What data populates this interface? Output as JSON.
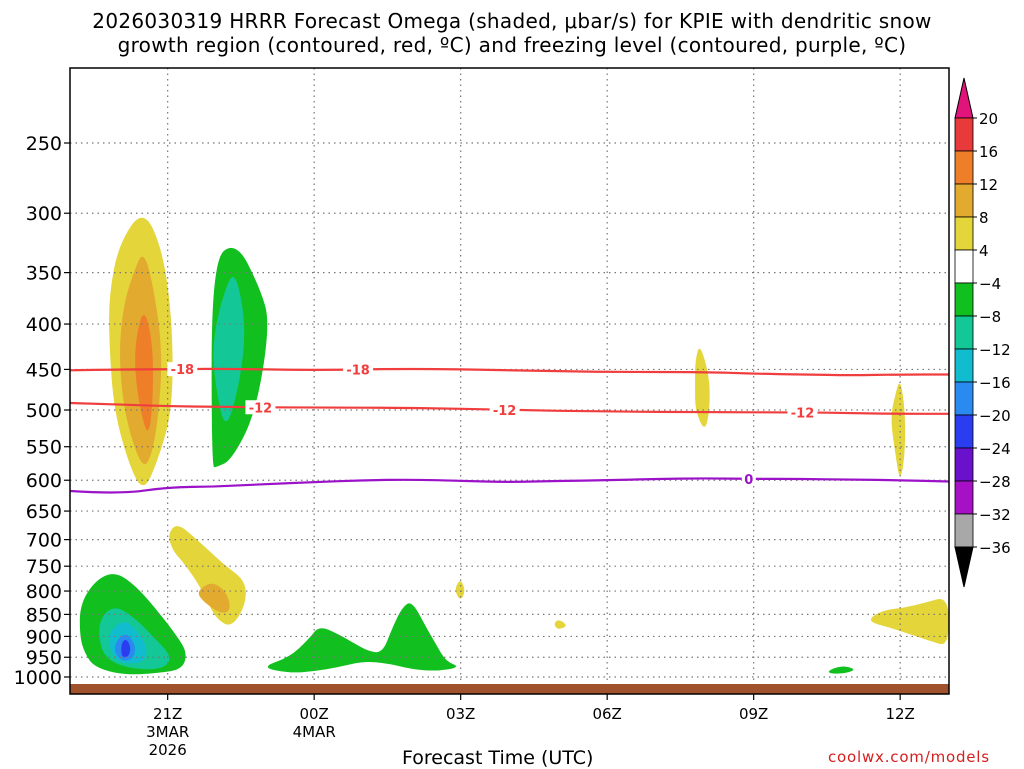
{
  "chart_data": {
    "type": "heatmap",
    "title_line1": "2026030319 HRRR Forecast Omega (shaded, μbar/s) for KPIE with dendritic snow",
    "title_line2": "growth region (contoured, red, ºC) and freezing level (contoured, purple, ºC)",
    "xlabel": "Forecast Time (UTC)",
    "ylabel": "",
    "credit": "coolwx.com/models",
    "xlim": [
      19,
      37
    ],
    "ylim": [
      1000,
      200
    ],
    "x_ticks": [
      {
        "value": 21,
        "label": "21Z",
        "sub1": "3MAR",
        "sub2": "2026"
      },
      {
        "value": 24,
        "label": "00Z",
        "sub1": "4MAR",
        "sub2": ""
      },
      {
        "value": 27,
        "label": "03Z",
        "sub1": "",
        "sub2": ""
      },
      {
        "value": 30,
        "label": "06Z",
        "sub1": "",
        "sub2": ""
      },
      {
        "value": 33,
        "label": "09Z",
        "sub1": "",
        "sub2": ""
      },
      {
        "value": 36,
        "label": "12Z",
        "sub1": "",
        "sub2": ""
      }
    ],
    "y_ticks": [
      250,
      300,
      350,
      400,
      450,
      500,
      550,
      600,
      650,
      700,
      750,
      800,
      850,
      900,
      950,
      1000
    ],
    "colorbar": {
      "levels": [
        "20",
        "16",
        "12",
        "8",
        "4",
        "−4",
        "−8",
        "−12",
        "−16",
        "−20",
        "−24",
        "−28",
        "−32",
        "−36"
      ],
      "colors": [
        "#e0147a",
        "#e83a3a",
        "#ee7f28",
        "#e2aa2e",
        "#e3d53a",
        "#ffffff",
        "#11c01e",
        "#14c796",
        "#11bccf",
        "#2a8af0",
        "#2a3df0",
        "#6a11cb",
        "#a611c6",
        "#a8a8a8",
        "#000000"
      ]
    },
    "series": [
      {
        "name": "dendritic growth -18C",
        "kind": "isotherm",
        "color": "#f03e3e",
        "label": "-18",
        "points": [
          [
            19,
            451
          ],
          [
            20,
            450
          ],
          [
            21,
            450
          ],
          [
            22,
            449
          ],
          [
            24,
            451
          ],
          [
            26,
            449
          ],
          [
            28,
            451
          ],
          [
            30,
            453
          ],
          [
            32,
            453
          ],
          [
            33,
            455
          ],
          [
            34,
            456
          ],
          [
            35,
            457
          ],
          [
            36,
            456
          ],
          [
            37,
            456
          ]
        ],
        "label_x": [
          21.3,
          24.9
        ]
      },
      {
        "name": "dendritic growth -12C",
        "kind": "isotherm",
        "color": "#f03e3e",
        "label": "-12",
        "points": [
          [
            19,
            491
          ],
          [
            20,
            493
          ],
          [
            21,
            495
          ],
          [
            22,
            496
          ],
          [
            24,
            497
          ],
          [
            26,
            497
          ],
          [
            28,
            500
          ],
          [
            30,
            502
          ],
          [
            32,
            503
          ],
          [
            34,
            503
          ],
          [
            35,
            504
          ],
          [
            36,
            505
          ],
          [
            37,
            505
          ]
        ],
        "label_x": [
          22.9,
          27.9,
          34.0
        ]
      },
      {
        "name": "freezing level 0C",
        "kind": "isotherm",
        "color": "#9b12c8",
        "label": "0",
        "points": [
          [
            19,
            617
          ],
          [
            20,
            622
          ],
          [
            21,
            611
          ],
          [
            22,
            610
          ],
          [
            23,
            606
          ],
          [
            24,
            603
          ],
          [
            25,
            600
          ],
          [
            26,
            599
          ],
          [
            27,
            601
          ],
          [
            28,
            603
          ],
          [
            29,
            601
          ],
          [
            30,
            600
          ],
          [
            31,
            598
          ],
          [
            32,
            597
          ],
          [
            33,
            598
          ],
          [
            34,
            598
          ],
          [
            35,
            599
          ],
          [
            36,
            600
          ],
          [
            37,
            602
          ]
        ],
        "label_x": [
          32.9
        ]
      }
    ],
    "shaded_regions": [
      {
        "value": "4 to 8",
        "color": "#e3d53a",
        "points": [
          [
            20.0,
            325
          ],
          [
            20.5,
            296
          ],
          [
            20.9,
            330
          ],
          [
            21.1,
            400
          ],
          [
            21.1,
            500
          ],
          [
            20.8,
            570
          ],
          [
            20.5,
            620
          ],
          [
            20.2,
            575
          ],
          [
            19.9,
            500
          ],
          [
            19.8,
            420
          ],
          [
            19.8,
            370
          ]
        ]
      },
      {
        "value": "8 to 12",
        "color": "#e2aa2e",
        "points": [
          [
            20.3,
            350
          ],
          [
            20.5,
            330
          ],
          [
            20.7,
            360
          ],
          [
            20.9,
            430
          ],
          [
            20.8,
            520
          ],
          [
            20.6,
            580
          ],
          [
            20.4,
            570
          ],
          [
            20.1,
            500
          ],
          [
            20.0,
            430
          ],
          [
            20.1,
            380
          ]
        ]
      },
      {
        "value": "12 to 16",
        "color": "#ee7f28",
        "points": [
          [
            20.5,
            380
          ],
          [
            20.7,
            420
          ],
          [
            20.7,
            490
          ],
          [
            20.6,
            540
          ],
          [
            20.4,
            490
          ],
          [
            20.3,
            430
          ]
        ]
      },
      {
        "value": "-8 to -4",
        "color": "#11c01e",
        "points": [
          [
            22.4,
            322
          ],
          [
            22.9,
            365
          ],
          [
            23.1,
            400
          ],
          [
            22.8,
            505
          ],
          [
            22.3,
            570
          ],
          [
            22.0,
            580
          ],
          [
            21.9,
            580
          ],
          [
            21.9,
            340
          ]
        ]
      },
      {
        "value": "-12 to -8",
        "color": "#14c796",
        "points": [
          [
            22.2,
            360
          ],
          [
            22.4,
            350
          ],
          [
            22.6,
            400
          ],
          [
            22.5,
            460
          ],
          [
            22.2,
            530
          ],
          [
            22.0,
            480
          ],
          [
            21.9,
            420
          ]
        ]
      },
      {
        "value": "4 to 8",
        "color": "#e3d53a",
        "points": [
          [
            21.0,
            690
          ],
          [
            21.2,
            670
          ],
          [
            21.6,
            700
          ],
          [
            21.9,
            725
          ],
          [
            22.2,
            750
          ],
          [
            22.6,
            780
          ],
          [
            22.6,
            830
          ],
          [
            22.3,
            880
          ],
          [
            22.0,
            860
          ],
          [
            21.8,
            820
          ],
          [
            21.6,
            780
          ],
          [
            21.3,
            740
          ],
          [
            21.1,
            720
          ]
        ]
      },
      {
        "value": "8 to 12",
        "color": "#e2aa2e",
        "points": [
          [
            21.6,
            800
          ],
          [
            21.9,
            780
          ],
          [
            22.2,
            800
          ],
          [
            22.3,
            840
          ],
          [
            22.1,
            850
          ],
          [
            21.7,
            820
          ]
        ]
      },
      {
        "value": "-8 to -4",
        "color": "#11c01e",
        "points": [
          [
            19.2,
            830
          ],
          [
            19.5,
            780
          ],
          [
            19.9,
            760
          ],
          [
            20.3,
            785
          ],
          [
            20.7,
            830
          ],
          [
            21.2,
            900
          ],
          [
            21.4,
            940
          ],
          [
            21.3,
            980
          ],
          [
            20.8,
            990
          ],
          [
            20.1,
            995
          ],
          [
            19.5,
            975
          ],
          [
            19.3,
            940
          ],
          [
            19.2,
            900
          ]
        ]
      },
      {
        "value": "-12 to -8",
        "color": "#14c796",
        "points": [
          [
            19.6,
            860
          ],
          [
            19.9,
            830
          ],
          [
            20.3,
            855
          ],
          [
            20.7,
            900
          ],
          [
            21.1,
            950
          ],
          [
            20.9,
            980
          ],
          [
            20.3,
            980
          ],
          [
            19.8,
            960
          ],
          [
            19.6,
            920
          ]
        ]
      },
      {
        "value": "-16 to -12",
        "color": "#11bccf",
        "points": [
          [
            19.8,
            890
          ],
          [
            20.1,
            860
          ],
          [
            20.4,
            890
          ],
          [
            20.6,
            930
          ],
          [
            20.5,
            965
          ],
          [
            20.0,
            965
          ],
          [
            19.8,
            930
          ]
        ]
      },
      {
        "value": "-20 to -16",
        "color": "#2a8af0",
        "points": [
          [
            19.95,
            910
          ],
          [
            20.15,
            890
          ],
          [
            20.35,
            920
          ],
          [
            20.3,
            955
          ],
          [
            20.05,
            960
          ],
          [
            19.9,
            935
          ]
        ]
      },
      {
        "value": "-24 to -20",
        "color": "#2a3df0",
        "points": [
          [
            20.05,
            915
          ],
          [
            20.15,
            905
          ],
          [
            20.25,
            925
          ],
          [
            20.2,
            950
          ],
          [
            20.05,
            950
          ]
        ]
      },
      {
        "value": "-8 to -4",
        "color": "#11c01e",
        "points": [
          [
            22.9,
            975
          ],
          [
            23.5,
            950
          ],
          [
            23.9,
            905
          ],
          [
            24.1,
            875
          ],
          [
            24.5,
            895
          ],
          [
            24.8,
            915
          ],
          [
            25.1,
            935
          ],
          [
            25.4,
            940
          ],
          [
            25.6,
            880
          ],
          [
            25.8,
            835
          ],
          [
            26.0,
            820
          ],
          [
            26.3,
            880
          ],
          [
            26.5,
            920
          ],
          [
            26.7,
            960
          ],
          [
            27.0,
            975
          ],
          [
            26.5,
            985
          ],
          [
            26.0,
            980
          ],
          [
            25.5,
            965
          ],
          [
            25.0,
            960
          ],
          [
            24.5,
            975
          ],
          [
            24.0,
            985
          ],
          [
            23.5,
            990
          ]
        ]
      },
      {
        "value": "4 to 8",
        "color": "#e3d53a",
        "points": [
          [
            26.9,
            790
          ],
          [
            27.0,
            775
          ],
          [
            27.1,
            800
          ],
          [
            27.0,
            820
          ],
          [
            26.9,
            805
          ]
        ]
      },
      {
        "value": "4 to 8",
        "color": "#e3d53a",
        "points": [
          [
            28.9,
            872
          ],
          [
            29.0,
            860
          ],
          [
            29.2,
            875
          ],
          [
            29.0,
            885
          ]
        ]
      },
      {
        "value": "4 to 8",
        "color": "#e3d53a",
        "points": [
          [
            31.8,
            440
          ],
          [
            31.9,
            420
          ],
          [
            32.1,
            460
          ],
          [
            32.1,
            500
          ],
          [
            32.0,
            530
          ],
          [
            31.8,
            500
          ],
          [
            31.8,
            470
          ]
        ]
      },
      {
        "value": "4 to 8",
        "color": "#e3d53a",
        "points": [
          [
            35.9,
            480
          ],
          [
            36.0,
            460
          ],
          [
            36.1,
            500
          ],
          [
            36.1,
            560
          ],
          [
            36.0,
            605
          ],
          [
            35.9,
            560
          ],
          [
            35.8,
            510
          ]
        ]
      },
      {
        "value": "4 to 8",
        "color": "#e3d53a",
        "points": [
          [
            35.4,
            855
          ],
          [
            35.7,
            840
          ],
          [
            36.1,
            835
          ],
          [
            36.5,
            825
          ],
          [
            37.0,
            810
          ],
          [
            37.0,
            925
          ],
          [
            36.6,
            910
          ],
          [
            36.2,
            895
          ],
          [
            35.8,
            880
          ],
          [
            35.4,
            868
          ]
        ]
      },
      {
        "value": "-8 to -4",
        "color": "#11c01e",
        "points": [
          [
            34.5,
            985
          ],
          [
            34.8,
            970
          ],
          [
            35.1,
            980
          ],
          [
            34.9,
            990
          ],
          [
            34.6,
            992
          ]
        ]
      }
    ],
    "surface": {
      "label": "ground",
      "color": "#a0522d"
    }
  }
}
